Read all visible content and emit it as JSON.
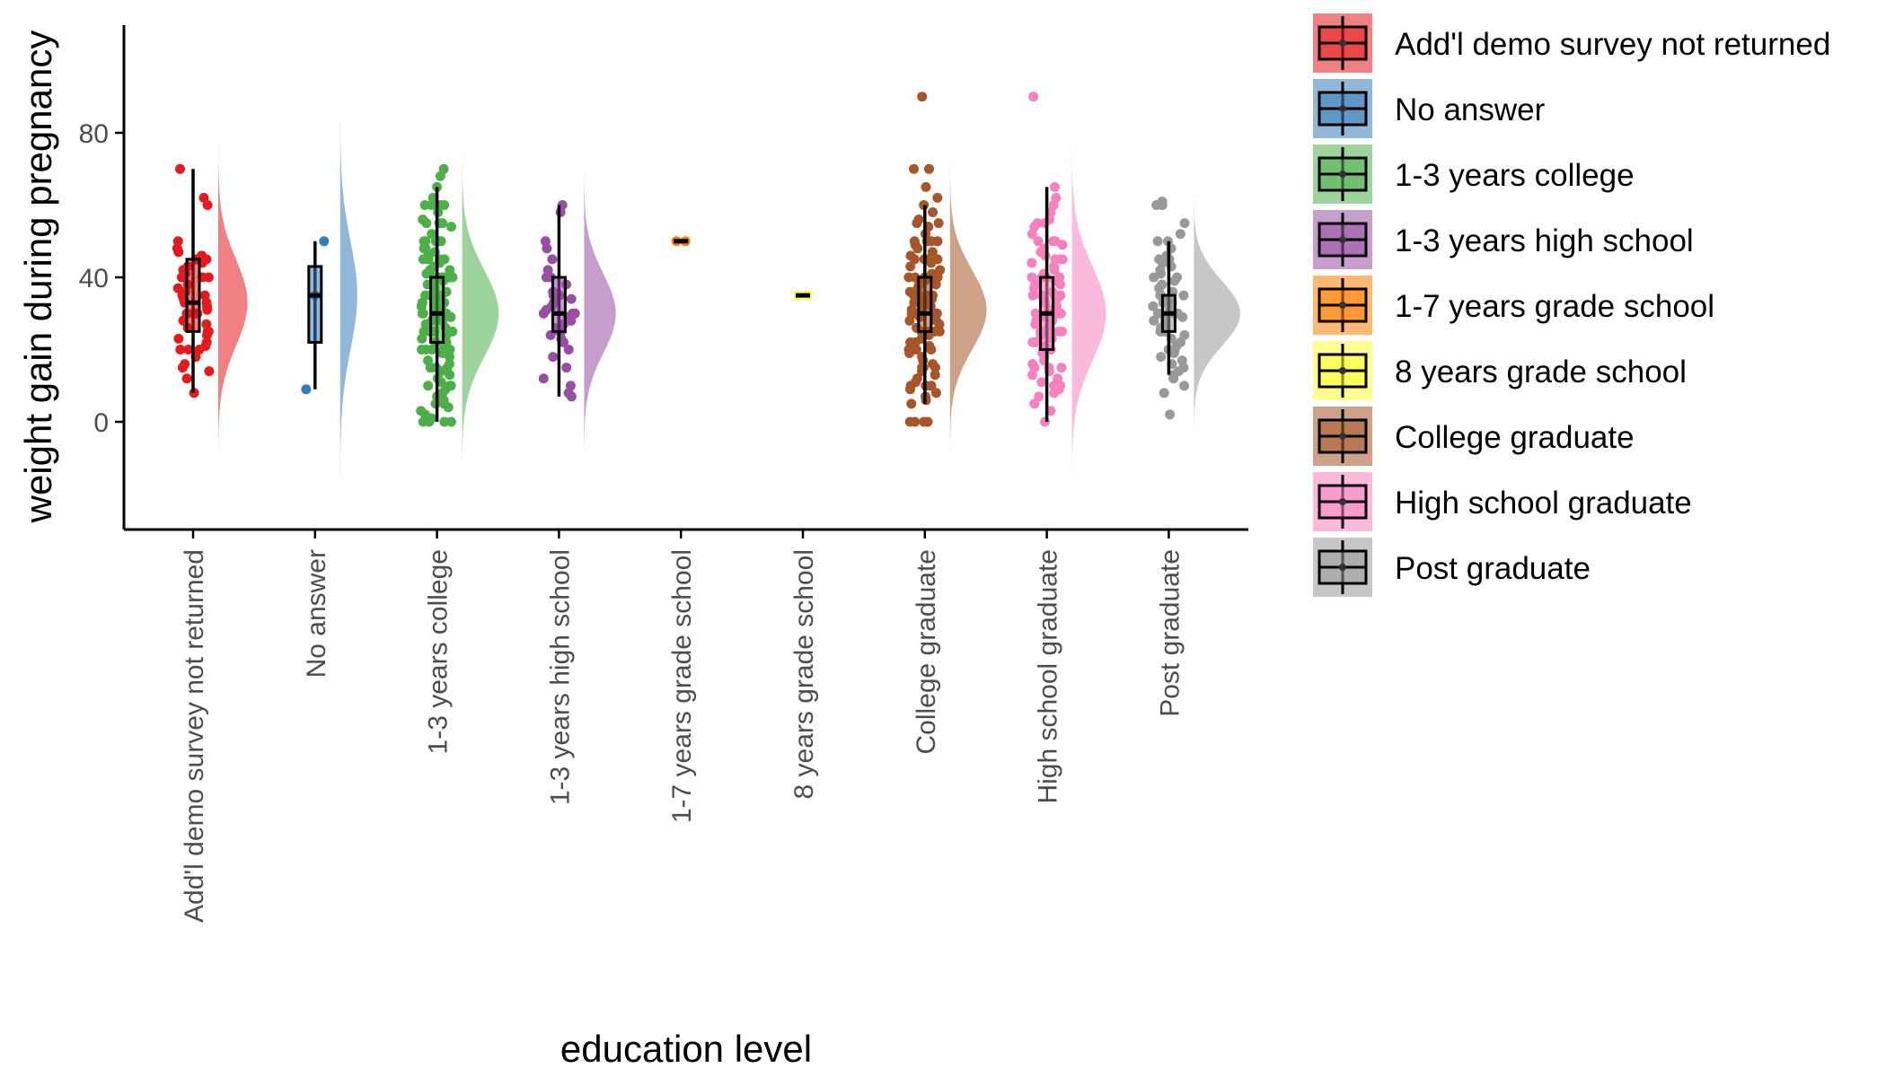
{
  "chart_data": {
    "type": "raincloud",
    "xlabel": "education level",
    "ylabel": "weight gain during pregnancy",
    "ylim": [
      -30,
      110
    ],
    "yticks": [
      0,
      40,
      80
    ],
    "grid": false,
    "legend_position": "right",
    "categories": [
      "Add'l demo survey not returned",
      "No answer",
      "1-3 years college",
      "1-3 years high school",
      "1-7 years grade school",
      "8 years grade school",
      "College graduate",
      "High school graduate",
      "Post graduate"
    ],
    "legend_labels": [
      " Add'l demo survey not returned",
      " No answer",
      "1-3 years college",
      "1-3 years high school",
      "1-7 years grade school",
      "8 years grade school",
      "College graduate",
      "High school graduate",
      "Post graduate"
    ],
    "series": [
      {
        "color": "#E41A1C",
        "box": {
          "min": 8,
          "q1": 25,
          "median": 33,
          "q3": 45,
          "max": 70
        },
        "density": {
          "center": 33,
          "sd": 12,
          "lo": -8,
          "hi": 87,
          "width": 0.24
        },
        "points": [
          70,
          62,
          60,
          50,
          48,
          47,
          46,
          45,
          45,
          44,
          43,
          42,
          41,
          40,
          40,
          40,
          38,
          37,
          36,
          35,
          35,
          34,
          33,
          33,
          32,
          31,
          30,
          30,
          30,
          28,
          27,
          26,
          25,
          25,
          24,
          23,
          22,
          21,
          20,
          20,
          20,
          18,
          16,
          15,
          14,
          12,
          8
        ]
      },
      {
        "color": "#377EB8",
        "box": {
          "min": 9,
          "q1": 22,
          "median": 35,
          "q3": 43,
          "max": 50
        },
        "density": {
          "center": 35,
          "sd": 15,
          "lo": -24,
          "hi": 83,
          "width": 0.14
        },
        "points": [
          9,
          35,
          50
        ]
      },
      {
        "color": "#4DAF4A",
        "box": {
          "min": 0,
          "q1": 22,
          "median": 30,
          "q3": 40,
          "max": 65
        },
        "density": {
          "center": 30,
          "sd": 12,
          "lo": -11,
          "hi": 78,
          "width": 0.3
        },
        "points": [
          70,
          68,
          65,
          62,
          60,
          60,
          60,
          60,
          58,
          56,
          55,
          55,
          55,
          54,
          52,
          50,
          50,
          50,
          50,
          50,
          48,
          48,
          47,
          46,
          45,
          45,
          45,
          45,
          44,
          43,
          42,
          42,
          41,
          40,
          40,
          40,
          40,
          40,
          40,
          39,
          38,
          38,
          37,
          36,
          35,
          35,
          35,
          35,
          35,
          35,
          34,
          33,
          33,
          32,
          32,
          31,
          30,
          30,
          30,
          30,
          30,
          30,
          30,
          29,
          28,
          28,
          27,
          26,
          25,
          25,
          25,
          25,
          25,
          25,
          24,
          23,
          22,
          22,
          21,
          20,
          20,
          20,
          20,
          20,
          19,
          18,
          17,
          16,
          15,
          15,
          15,
          15,
          14,
          13,
          12,
          11,
          10,
          10,
          10,
          9,
          8,
          7,
          6,
          5,
          5,
          4,
          3,
          2,
          1,
          0,
          0,
          0,
          0
        ]
      },
      {
        "color": "#984EA3",
        "box": {
          "min": 7,
          "q1": 25,
          "median": 30,
          "q3": 40,
          "max": 60
        },
        "density": {
          "center": 30,
          "sd": 11,
          "lo": -8,
          "hi": 76,
          "width": 0.26
        },
        "points": [
          60,
          58,
          50,
          48,
          45,
          42,
          40,
          40,
          38,
          36,
          35,
          35,
          34,
          33,
          32,
          31,
          30,
          30,
          30,
          29,
          28,
          27,
          26,
          25,
          25,
          24,
          23,
          22,
          20,
          18,
          15,
          12,
          10,
          8,
          7
        ]
      },
      {
        "color": "#FF7F00",
        "box": {
          "min": 50,
          "q1": 50,
          "median": 50,
          "q3": 50,
          "max": 50
        },
        "density": null,
        "points": [
          50,
          50
        ]
      },
      {
        "color": "#FFFF33",
        "box": {
          "min": 35,
          "q1": 35,
          "median": 35,
          "q3": 35,
          "max": 35
        },
        "density": null,
        "points": [
          35,
          35
        ]
      },
      {
        "color": "#A65628",
        "box": {
          "min": 5,
          "q1": 25,
          "median": 30,
          "q3": 40,
          "max": 60
        },
        "density": {
          "center": 31,
          "sd": 11,
          "lo": -10,
          "hi": 98,
          "width": 0.3
        },
        "points": [
          90,
          70,
          70,
          65,
          62,
          60,
          58,
          56,
          55,
          55,
          54,
          52,
          50,
          50,
          50,
          50,
          49,
          48,
          47,
          46,
          45,
          45,
          45,
          45,
          44,
          43,
          42,
          41,
          40,
          40,
          40,
          40,
          40,
          39,
          38,
          38,
          37,
          36,
          35,
          35,
          35,
          35,
          35,
          34,
          33,
          33,
          32,
          32,
          31,
          30,
          30,
          30,
          30,
          30,
          30,
          29,
          28,
          28,
          27,
          26,
          25,
          25,
          25,
          25,
          25,
          24,
          23,
          22,
          22,
          21,
          20,
          20,
          20,
          20,
          19,
          18,
          17,
          16,
          15,
          15,
          15,
          14,
          13,
          12,
          11,
          10,
          10,
          10,
          9,
          8,
          7,
          6,
          5,
          0,
          0,
          0,
          0
        ]
      },
      {
        "color": "#F781BF",
        "box": {
          "min": 0,
          "q1": 20,
          "median": 30,
          "q3": 40,
          "max": 65
        },
        "density": {
          "center": 30,
          "sd": 13,
          "lo": -14,
          "hi": 103,
          "width": 0.28
        },
        "points": [
          90,
          65,
          62,
          60,
          58,
          56,
          55,
          55,
          54,
          52,
          50,
          50,
          50,
          49,
          48,
          47,
          46,
          45,
          45,
          45,
          44,
          43,
          42,
          41,
          40,
          40,
          40,
          40,
          39,
          38,
          38,
          37,
          36,
          35,
          35,
          35,
          35,
          34,
          33,
          33,
          32,
          31,
          30,
          30,
          30,
          30,
          29,
          28,
          28,
          27,
          26,
          25,
          25,
          25,
          25,
          24,
          23,
          22,
          22,
          21,
          20,
          20,
          20,
          20,
          19,
          18,
          17,
          16,
          15,
          15,
          15,
          14,
          13,
          12,
          11,
          10,
          10,
          9,
          8,
          7,
          5,
          3,
          0
        ]
      },
      {
        "color": "#999999",
        "box": {
          "min": 13,
          "q1": 25,
          "median": 30,
          "q3": 35,
          "max": 50
        },
        "density": {
          "center": 30,
          "sd": 9,
          "lo": -5,
          "hi": 70,
          "width": 0.38
        },
        "points": [
          61,
          60,
          60,
          55,
          52,
          50,
          50,
          48,
          46,
          45,
          45,
          44,
          43,
          42,
          41,
          40,
          40,
          39,
          38,
          37,
          36,
          35,
          35,
          35,
          34,
          33,
          33,
          32,
          31,
          30,
          30,
          30,
          30,
          29,
          28,
          28,
          27,
          26,
          25,
          25,
          25,
          24,
          23,
          22,
          21,
          20,
          20,
          19,
          18,
          17,
          16,
          15,
          14,
          13,
          12,
          10,
          8,
          2
        ]
      }
    ]
  }
}
